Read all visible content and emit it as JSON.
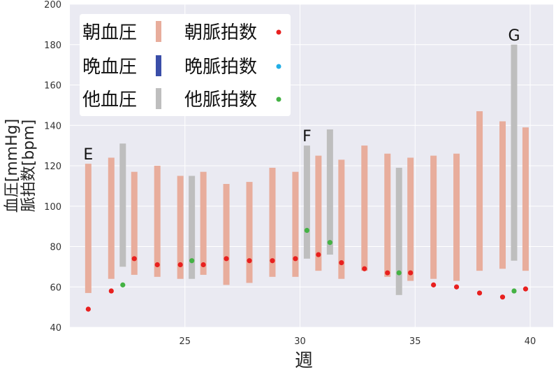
{
  "chart_data": {
    "type": "bar",
    "xlabel": "週",
    "ylabel_line1": "血圧[mmHg]",
    "ylabel_line2": "脈拍数[bpm]",
    "xlim": [
      20,
      41
    ],
    "ylim": [
      40,
      200
    ],
    "xticks": [
      25,
      30,
      35,
      40
    ],
    "yticks": [
      40,
      60,
      80,
      100,
      120,
      140,
      160,
      180,
      200
    ],
    "grid": true,
    "legend_position": "top-left",
    "colors": {
      "background": "#eaeaf2",
      "grid": "#ffffff",
      "morning_bp": "#e8ad9c",
      "evening_bp": "#3a4ea8",
      "other_bp": "#bebebe",
      "morning_pulse": "#e8201f",
      "evening_pulse": "#22aee6",
      "other_pulse": "#44b244"
    },
    "legend": [
      {
        "key": "morning_bp",
        "label": "朝血圧",
        "marker": "bar"
      },
      {
        "key": "morning_pulse",
        "label": "朝脈拍数",
        "marker": "dot"
      },
      {
        "key": "evening_bp",
        "label": "晩血圧",
        "marker": "bar"
      },
      {
        "key": "evening_pulse",
        "label": "晩脈拍数",
        "marker": "dot"
      },
      {
        "key": "other_bp",
        "label": "他血圧",
        "marker": "bar"
      },
      {
        "key": "other_pulse",
        "label": "他脈拍数",
        "marker": "dot"
      }
    ],
    "series": [
      {
        "key": "morning_bp",
        "kind": "range",
        "points": [
          {
            "x": 20.8,
            "low": 57,
            "high": 121
          },
          {
            "x": 21.8,
            "low": 64,
            "high": 124
          },
          {
            "x": 22.8,
            "low": 66,
            "high": 117
          },
          {
            "x": 23.8,
            "low": 65,
            "high": 120
          },
          {
            "x": 24.8,
            "low": 64,
            "high": 115
          },
          {
            "x": 25.8,
            "low": 66,
            "high": 117
          },
          {
            "x": 26.8,
            "low": 61,
            "high": 111
          },
          {
            "x": 27.8,
            "low": 62,
            "high": 112
          },
          {
            "x": 28.8,
            "low": 65,
            "high": 119
          },
          {
            "x": 29.8,
            "low": 65,
            "high": 117
          },
          {
            "x": 30.8,
            "low": 68,
            "high": 125
          },
          {
            "x": 31.8,
            "low": 64,
            "high": 123
          },
          {
            "x": 32.8,
            "low": 68,
            "high": 130
          },
          {
            "x": 33.8,
            "low": 65,
            "high": 126
          },
          {
            "x": 34.8,
            "low": 63,
            "high": 124
          },
          {
            "x": 35.8,
            "low": 64,
            "high": 125
          },
          {
            "x": 36.8,
            "low": 63,
            "high": 126
          },
          {
            "x": 37.8,
            "low": 68,
            "high": 147
          },
          {
            "x": 38.8,
            "low": 69,
            "high": 142
          },
          {
            "x": 39.8,
            "low": 68,
            "high": 139
          }
        ]
      },
      {
        "key": "other_bp",
        "kind": "range",
        "points": [
          {
            "x": 22.3,
            "low": 70,
            "high": 131
          },
          {
            "x": 25.3,
            "low": 64,
            "high": 115
          },
          {
            "x": 30.3,
            "low": 74,
            "high": 130
          },
          {
            "x": 31.3,
            "low": 76,
            "high": 138
          },
          {
            "x": 34.3,
            "low": 56,
            "high": 119
          },
          {
            "x": 39.3,
            "low": 73,
            "high": 180
          }
        ]
      },
      {
        "key": "morning_pulse",
        "kind": "point",
        "points": [
          {
            "x": 20.8,
            "y": 49
          },
          {
            "x": 21.8,
            "y": 58
          },
          {
            "x": 22.8,
            "y": 74
          },
          {
            "x": 23.8,
            "y": 71
          },
          {
            "x": 24.8,
            "y": 71
          },
          {
            "x": 25.8,
            "y": 71
          },
          {
            "x": 26.8,
            "y": 74
          },
          {
            "x": 27.8,
            "y": 73
          },
          {
            "x": 28.8,
            "y": 73
          },
          {
            "x": 29.8,
            "y": 74
          },
          {
            "x": 30.8,
            "y": 76
          },
          {
            "x": 31.8,
            "y": 72
          },
          {
            "x": 32.8,
            "y": 69
          },
          {
            "x": 33.8,
            "y": 67
          },
          {
            "x": 34.8,
            "y": 67
          },
          {
            "x": 35.8,
            "y": 61
          },
          {
            "x": 36.8,
            "y": 60
          },
          {
            "x": 37.8,
            "y": 57
          },
          {
            "x": 38.8,
            "y": 55
          },
          {
            "x": 39.8,
            "y": 59
          }
        ]
      },
      {
        "key": "other_pulse",
        "kind": "point",
        "points": [
          {
            "x": 22.3,
            "y": 61
          },
          {
            "x": 25.3,
            "y": 73
          },
          {
            "x": 30.3,
            "y": 88
          },
          {
            "x": 31.3,
            "y": 82
          },
          {
            "x": 34.3,
            "y": 67
          },
          {
            "x": 39.3,
            "y": 58
          }
        ]
      }
    ],
    "annotations": [
      {
        "text": "E",
        "x": 20.8,
        "y": 121
      },
      {
        "text": "F",
        "x": 30.3,
        "y": 130
      },
      {
        "text": "G",
        "x": 39.3,
        "y": 180
      }
    ]
  }
}
